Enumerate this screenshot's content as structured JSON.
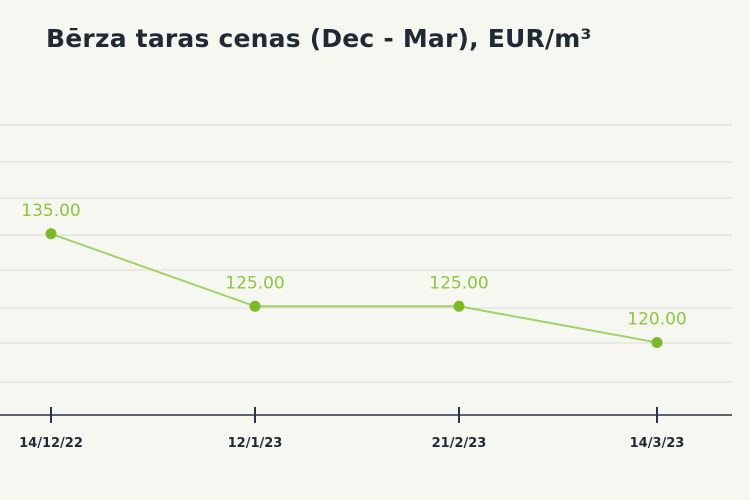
{
  "chart_data": {
    "type": "line",
    "title": "Bērza taras cenas (Dec - Mar), EUR/m³",
    "xlabel": "",
    "ylabel": "",
    "categories": [
      "14/12/22",
      "12/1/23",
      "21/2/23",
      "14/3/23"
    ],
    "series": [
      {
        "values": [
          135.0,
          125.0,
          125.0,
          120.0
        ],
        "labels": [
          "135.00",
          "125.00",
          "125.00",
          "120.00"
        ]
      }
    ],
    "ylim": [
      110,
      150
    ],
    "grid": true,
    "legend": "none",
    "colors": {
      "line": "#9fd36a",
      "marker": "#7cb928",
      "label": "#8cc63f",
      "grid": "#dcdcd4",
      "axis": "#2b3440",
      "text": "#1f2a35",
      "background": "#f7f7f1"
    }
  }
}
